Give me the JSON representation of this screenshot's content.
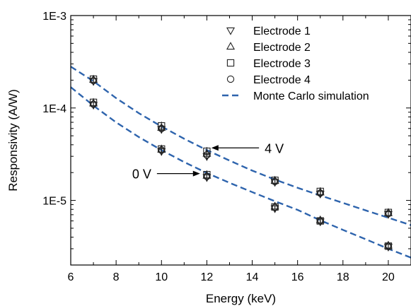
{
  "chart_data": {
    "type": "scatter",
    "xlabel": "Energy (keV)",
    "ylabel": "Responsivity (A/W)",
    "xlim": [
      6,
      21
    ],
    "ylim": [
      2e-06,
      0.001
    ],
    "yscale": "log",
    "x_ticks": [
      6,
      8,
      10,
      12,
      14,
      16,
      18,
      20
    ],
    "x_tick_labels": [
      "6",
      "8",
      "10",
      "12",
      "14",
      "16",
      "18",
      "20"
    ],
    "y_ticks": [
      1e-05,
      0.0001,
      0.001
    ],
    "y_tick_labels": [
      "1E-5",
      "1E-4",
      "1E-3"
    ],
    "legend_position": "top-right",
    "series": [
      {
        "name": "Electrode 1",
        "marker": "triangle-down",
        "x": [
          7,
          10,
          12,
          15,
          17,
          20,
          7,
          10,
          12,
          15,
          17,
          20
        ],
        "y": [
          0.000108,
          3.4e-05,
          1.78e-05,
          8.2e-06,
          5.9e-06,
          3.15e-06,
          0.000195,
          5.9e-05,
          3e-05,
          1.58e-05,
          1.18e-05,
          7.1e-06
        ]
      },
      {
        "name": "Electrode 2",
        "marker": "triangle-up",
        "x": [
          7,
          10,
          12,
          15,
          17,
          20,
          7,
          10,
          12,
          15,
          17,
          20
        ],
        "y": [
          0.000112,
          3.55e-05,
          1.85e-05,
          8.6e-06,
          6.1e-06,
          3.25e-06,
          0.000202,
          6.1e-05,
          3.2e-05,
          1.63e-05,
          1.22e-05,
          7.3e-06
        ]
      },
      {
        "name": "Electrode 3",
        "marker": "square",
        "x": [
          7,
          10,
          12,
          15,
          17,
          20,
          7,
          10,
          12,
          15,
          17,
          20
        ],
        "y": [
          0.000115,
          3.6e-05,
          1.9e-05,
          8.5e-06,
          6e-06,
          3.2e-06,
          0.000205,
          6.4e-05,
          3.4e-05,
          1.65e-05,
          1.25e-05,
          7.4e-06
        ]
      },
      {
        "name": "Electrode 4",
        "marker": "circle",
        "x": [
          7,
          10,
          12,
          15,
          17,
          20,
          7,
          10,
          12,
          15,
          17,
          20
        ],
        "y": [
          0.00011,
          3.5e-05,
          1.82e-05,
          8.4e-06,
          6e-06,
          3.2e-06,
          0.000198,
          6e-05,
          3.1e-05,
          1.6e-05,
          1.2e-05,
          7.2e-06
        ]
      },
      {
        "name": "Monte Carlo simulation",
        "style": "dashed",
        "color": "#2e64ad",
        "x": [
          6,
          7,
          8,
          9,
          10,
          11,
          12,
          13,
          14,
          15,
          16,
          17,
          18,
          19,
          20,
          21
        ],
        "y": [
          0.000168,
          0.000106,
          7e-05,
          4.85e-05,
          3.5e-05,
          2.6e-05,
          1.98e-05,
          1.55e-05,
          1.23e-05,
          9.8e-06,
          7.9e-06,
          6.1e-06,
          4.8e-06,
          3.8e-06,
          3e-06,
          2.4e-06
        ]
      },
      {
        "name": "",
        "style": "dashed",
        "color": "#2e64ad",
        "x": [
          6,
          7,
          8,
          9,
          10,
          11,
          12,
          13,
          14,
          15,
          16,
          17,
          18,
          19,
          20,
          21
        ],
        "y": [
          0.00028,
          0.000195,
          0.000128,
          8.8e-05,
          6.3e-05,
          4.65e-05,
          3.5e-05,
          2.7e-05,
          2.1e-05,
          1.68e-05,
          1.37e-05,
          1.13e-05,
          9.4e-06,
          7.8e-06,
          6.5e-06,
          5.4e-06
        ]
      }
    ],
    "annotations": [
      {
        "text": "4 V",
        "points_to": {
          "x": 12.2,
          "y": 3.7e-05
        },
        "arrow_from_x": 14.3
      },
      {
        "text": "0 V",
        "points_to": {
          "x": 11.7,
          "y": 1.95e-05
        },
        "arrow_from_x": 9.8
      }
    ]
  }
}
